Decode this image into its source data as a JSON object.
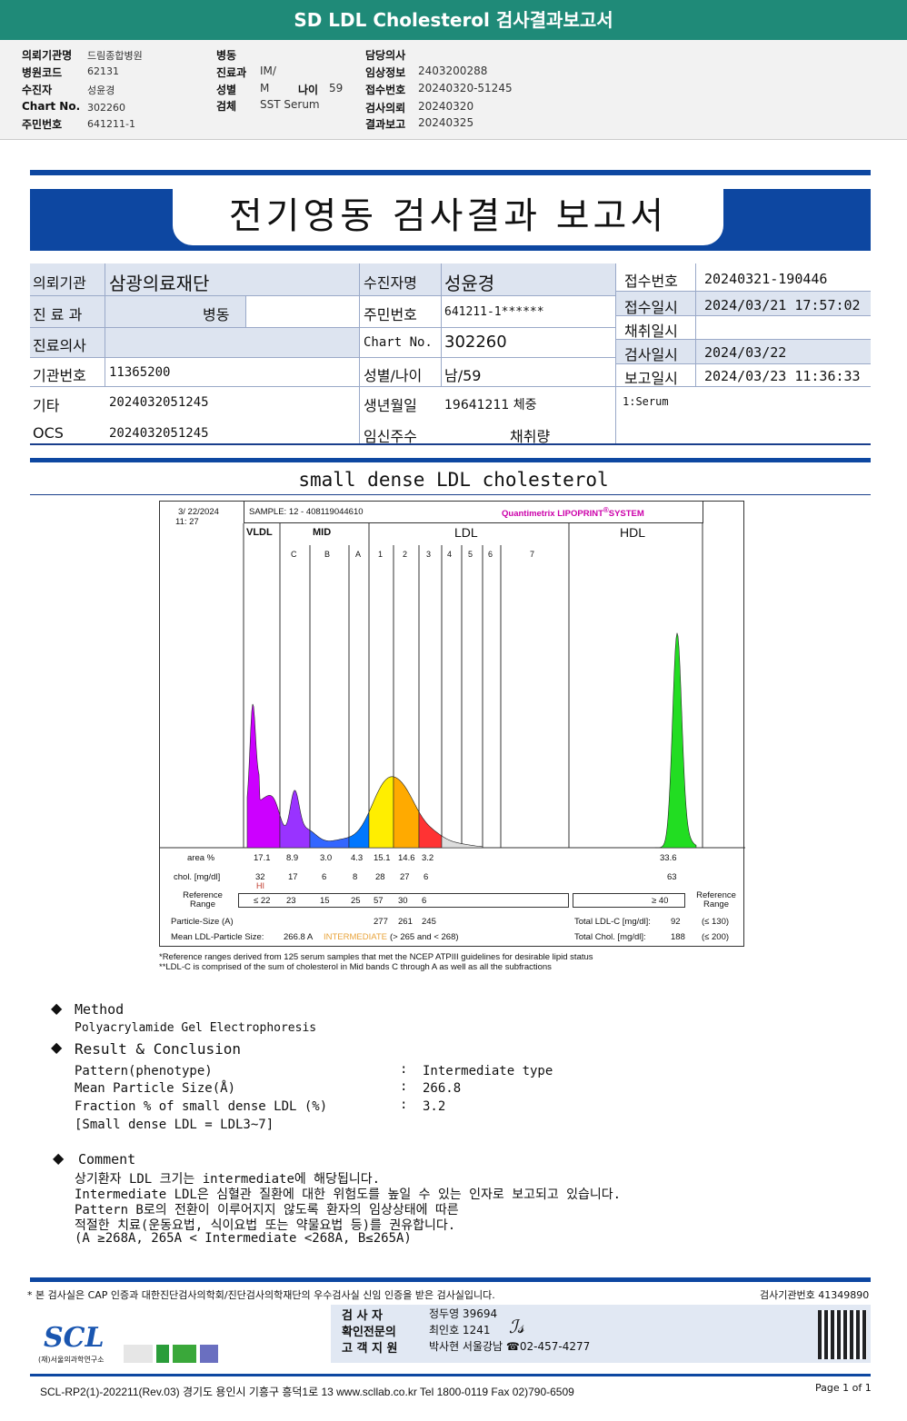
{
  "top_title": "SD LDL Cholesterol 검사결과보고서",
  "header": {
    "col1": [
      [
        "의뢰기관명",
        "드림종합병원"
      ],
      [
        "병원코드",
        "62131"
      ],
      [
        "수진자",
        "성윤경"
      ],
      [
        "Chart No.",
        "302260"
      ],
      [
        "주민번호",
        "641211-1"
      ]
    ],
    "col2": [
      [
        "병동",
        ""
      ],
      [
        "진료과",
        "IM/"
      ],
      [
        "성별",
        "M"
      ],
      [
        "검체",
        "SST Serum"
      ]
    ],
    "age_label": "나이",
    "age": "59",
    "col3": [
      [
        "담당의사",
        ""
      ],
      [
        "임상정보",
        "2403200288"
      ],
      [
        "접수번호",
        "20240320-51245"
      ],
      [
        "검사의뢰",
        "20240320"
      ],
      [
        "결과보고",
        "20240325"
      ]
    ]
  },
  "report_title": "전기영동 검사결과 보고서",
  "info": {
    "l1": "의뢰기관",
    "v1": "삼광의료재단",
    "l2": "진 료 과",
    "v2": "병동",
    "l3": "진료의사",
    "v3": "",
    "l4": "기관번호",
    "v4": "11365200",
    "l5": "기타",
    "v5": "2024032051245",
    "l6": "OCS",
    "v6": "2024032051245",
    "m1": "수진자명",
    "n1": "성윤경",
    "m2": "주민번호",
    "n2": "641211-1******",
    "m3": "Chart No.",
    "n3": "302260",
    "m4": "성별/나이",
    "n4": "남/59",
    "m5": "생년월일",
    "n5": "19641211 체중",
    "m6": "임신주수",
    "n6": "채취량",
    "r1": "접수번호",
    "s1": "20240321-190446",
    "r2": "접수일시",
    "s2": "2024/03/21 17:57:02",
    "r3": "채취일시",
    "s3": "",
    "r4": "검사일시",
    "s4": "2024/03/22",
    "r5": "보고일시",
    "s5": "2024/03/23 11:36:33",
    "specimen": "1:Serum"
  },
  "section_title": "small dense LDL cholesterol",
  "lipoprint": {
    "date": "3/ 22/2024",
    "time": "11: 27",
    "sample": "SAMPLE:    12 - 408119044610",
    "brand": "Quantimetrix LIPOPRINT",
    "brand_suffix": "SYSTEM",
    "groups": [
      "VLDL",
      "MID",
      "LDL",
      "HDL"
    ],
    "bands": [
      "C",
      "B",
      "A",
      "1",
      "2",
      "3",
      "4",
      "5",
      "6",
      "7"
    ],
    "area_label": "area %",
    "area": [
      "17.1",
      "8.9",
      "3.0",
      "4.3",
      "15.1",
      "14.6",
      "3.2"
    ],
    "hdl_area": "33.6",
    "chol_label": "chol. [mg/dl]",
    "chol": [
      "32",
      "17",
      "6",
      "8",
      "28",
      "27",
      "6"
    ],
    "hdl_chol": "63",
    "hi_flag": "HI",
    "ref_label": "Reference Range",
    "ref": [
      "≤ 22",
      "23",
      "15",
      "25",
      "57",
      "30",
      "6"
    ],
    "hdl_ref": "≥  40",
    "particle_label": "Particle-Size (A)",
    "particle": [
      "277",
      "261",
      "245"
    ],
    "mean_label": "Mean LDL-Particle Size:",
    "mean_value": "266.8 A",
    "mean_class": "INTERMEDIATE",
    "mean_range": "(> 265 and < 268)",
    "total_ldl_label": "Total LDL-C [mg/dl]:",
    "total_ldl": "92",
    "total_ldl_ref": "(≤ 130)",
    "total_chol_label": "Total Chol. [mg/dl]:",
    "total_chol": "188",
    "total_chol_ref": "(≤ 200)",
    "note1": "*Reference ranges derived from 125 serum samples that met the NCEP ATPIII guidelines for desirable lipid status",
    "note2": "**LDL-C is comprised of the sum of cholesterol in Mid bands C through A as well as all the subfractions",
    "colors": {
      "vldl": "#cc00ff",
      "mid_c": "#9933ff",
      "mid_b": "#3366ff",
      "mid_a": "#0077ff",
      "ldl1": "#ffee00",
      "ldl2": "#ffaa00",
      "ldl3": "#ff3333",
      "hdl": "#22dd22"
    }
  },
  "method": {
    "title": "Method",
    "text": "Polyacrylamide Gel Electrophoresis"
  },
  "result": {
    "title": "Result & Conclusion",
    "rows": [
      [
        "Pattern(phenotype)",
        "Intermediate type"
      ],
      [
        "Mean Particle Size(Å)",
        "266.8"
      ],
      [
        "Fraction % of small dense LDL (%)",
        "3.2"
      ]
    ],
    "note": "[Small dense LDL = LDL3~7]"
  },
  "comment": {
    "title": "Comment",
    "lines": [
      "상기환자 LDL 크기는 intermediate에 해당됩니다.",
      "Intermediate LDL은 심혈관 질환에 대한 위험도를 높일 수 있는 인자로 보고되고 있습니다.",
      "Pattern B로의 전환이 이루어지지 않도록 환자의 임상상태에 따른",
      "적절한 치료(운동요법, 식이요법 또는 약물요법 등)를 권유합니다.",
      "(A ≥268A, 265A < Intermediate <268A, B≤265A)"
    ]
  },
  "footer": {
    "cert": "* 본 검사실은 CAP 인증과 대한진단검사의학회/진단검사의학재단의 우수검사실 신임 인증을 받은 검사실입니다.",
    "lab_no": "검사기관번호 41349890",
    "staff": [
      [
        "검 사 자",
        "정두영 39694"
      ],
      [
        "확인전문의",
        "최인호 1241"
      ],
      [
        "고 객 지 원",
        "박사현 서울강남 ☎02-457-4277"
      ]
    ],
    "logo": "SCL",
    "logo_sub": "(재)서울의과학연구소",
    "address": "SCL-RP2(1)-202211(Rev.03)  경기도 용인시 기흥구 흥덕1로 13  www.scllab.co.kr   Tel 1800-0119    Fax 02)790-6509",
    "page": "Page 1 of 1"
  }
}
